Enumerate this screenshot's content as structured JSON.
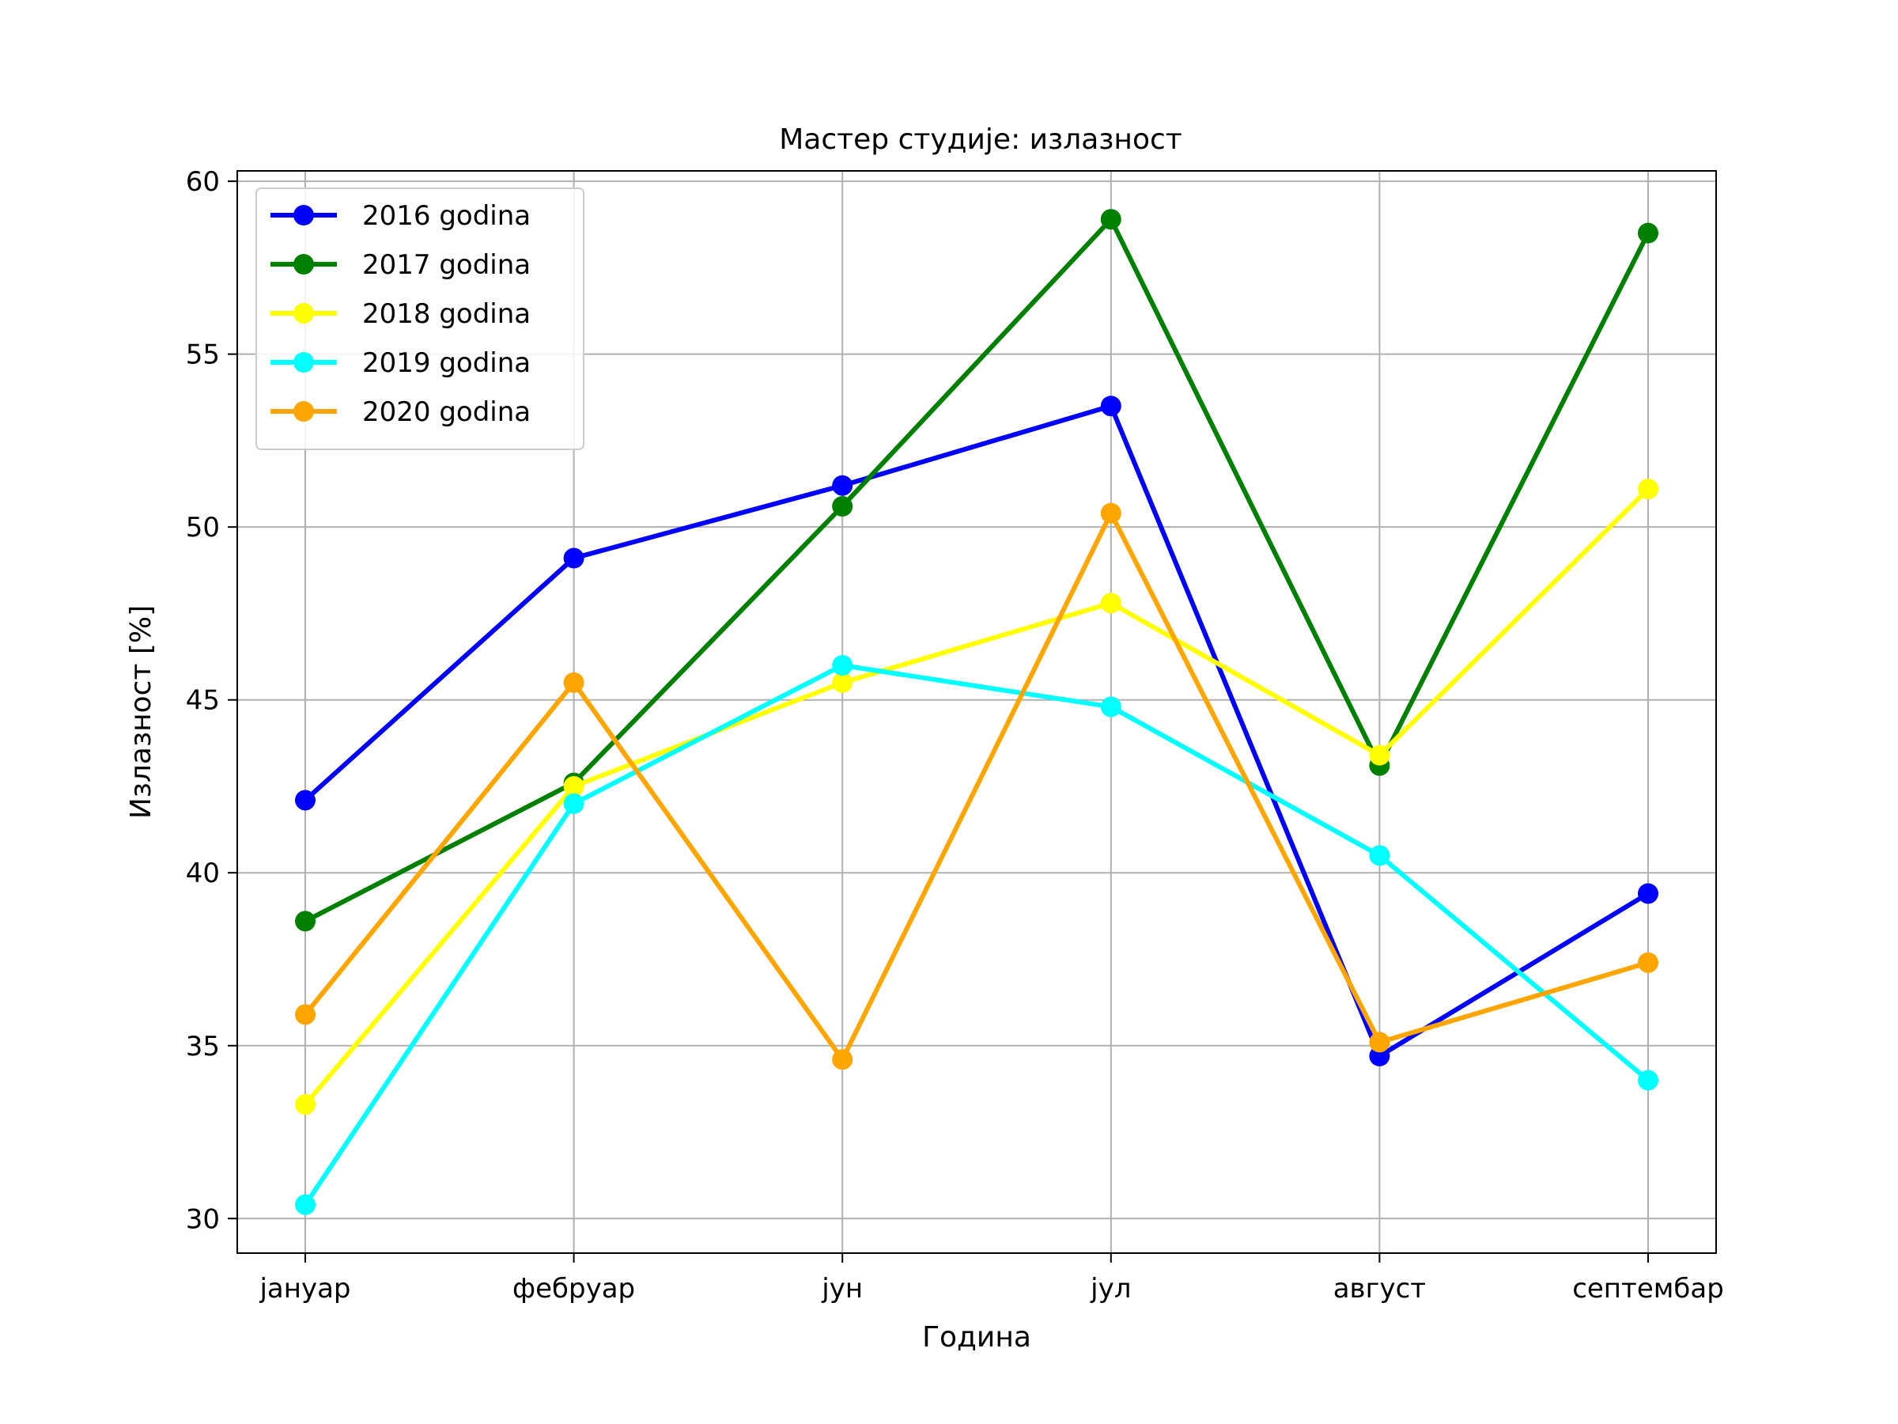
{
  "chart_data": {
    "type": "line",
    "title": "Мастер студије: излазност",
    "xlabel": "Година",
    "ylabel": "Излазност  [%]",
    "categories": [
      "јануар",
      "фебруар",
      "јун",
      "јул",
      "август",
      "септембар"
    ],
    "ylim": [
      29,
      60.3
    ],
    "yticks": [
      30,
      35,
      40,
      45,
      50,
      55,
      60
    ],
    "grid": true,
    "legend_position": "top-left",
    "series": [
      {
        "name": "2016 godina",
        "color": "#0000ff",
        "values": [
          42.1,
          49.1,
          51.2,
          53.5,
          34.7,
          39.4
        ]
      },
      {
        "name": "2017 godina",
        "color": "#008000",
        "values": [
          38.6,
          42.6,
          50.6,
          58.9,
          43.1,
          58.5
        ]
      },
      {
        "name": "2018 godina",
        "color": "#ffff00",
        "values": [
          33.3,
          42.5,
          45.5,
          47.8,
          43.4,
          51.1
        ]
      },
      {
        "name": "2019 godina",
        "color": "#00ffff",
        "values": [
          30.4,
          42.0,
          46.0,
          44.8,
          40.5,
          34.0
        ]
      },
      {
        "name": "2020 godina",
        "color": "#ffa500",
        "values": [
          35.9,
          45.5,
          34.6,
          50.4,
          35.1,
          37.4
        ]
      }
    ]
  }
}
